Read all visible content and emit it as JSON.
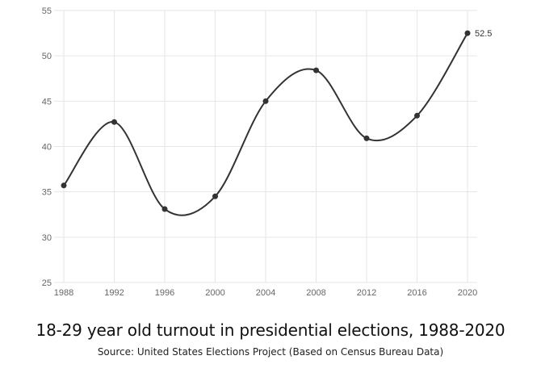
{
  "chart_data": {
    "type": "line",
    "x": [
      "1988",
      "1992",
      "1996",
      "2000",
      "2004",
      "2008",
      "2012",
      "2016",
      "2020"
    ],
    "series": [
      {
        "values": [
          35.7,
          42.7,
          33.1,
          34.5,
          45.0,
          48.4,
          40.9,
          43.4,
          52.5
        ]
      }
    ],
    "point_labels": {
      "8": "52.5"
    },
    "yticks": [
      "25",
      "30",
      "35",
      "40",
      "45",
      "50",
      "55"
    ],
    "ylim": [
      25,
      55
    ],
    "grid": true,
    "line_color": "#333333",
    "grid_color": "#e6e6e6",
    "title": "18-29 year old turnout in presidential elections, 1988-2020",
    "source": "Source: United States Elections Project (Based on Census Bureau Data)"
  }
}
